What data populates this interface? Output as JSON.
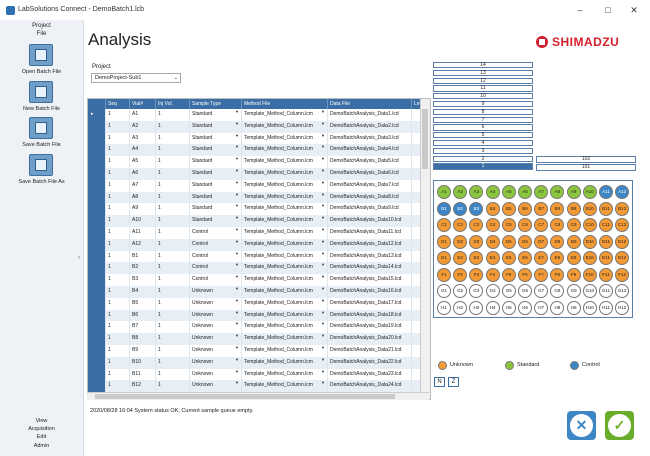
{
  "window": {
    "title": "LabSolutions Connect - DemoBatch1.lcb",
    "minimize": "–",
    "maximize": "□",
    "close": "✕"
  },
  "sidebar": {
    "top": [
      "Project",
      "File"
    ],
    "buttons": [
      {
        "label": "Open Batch File",
        "icon": "open-batch-icon"
      },
      {
        "label": "New Batch File",
        "icon": "new-batch-icon"
      },
      {
        "label": "Save Batch File",
        "icon": "save-batch-icon"
      },
      {
        "label": "Save Batch File As",
        "icon": "save-as-batch-icon"
      }
    ],
    "bottom": [
      "View",
      "Acquisition",
      "Edit",
      "Admin"
    ],
    "collapse": "‹"
  },
  "page": {
    "title": "Analysis",
    "brand": "SHIMADZU",
    "project_label": "Project",
    "project_value": "DemoProject-Sub1"
  },
  "grid": {
    "columns": [
      "",
      "Seq",
      "Vial#",
      "Inj Vol.",
      "Sample Type",
      "Method File",
      "Data File",
      "Lev"
    ],
    "rows": [
      [
        "1",
        "A1",
        "1",
        "Standard",
        "Template_Method_Column.lcm",
        "DemoBatchAnalysis_Data1.lcd"
      ],
      [
        "1",
        "A2",
        "1",
        "Standard",
        "Template_Method_Column.lcm",
        "DemoBatchAnalysis_Data2.lcd"
      ],
      [
        "1",
        "A3",
        "1",
        "Standard",
        "Template_Method_Column.lcm",
        "DemoBatchAnalysis_Data3.lcd"
      ],
      [
        "1",
        "A4",
        "1",
        "Standard",
        "Template_Method_Column.lcm",
        "DemoBatchAnalysis_Data4.lcd"
      ],
      [
        "1",
        "A5",
        "1",
        "Standard",
        "Template_Method_Column.lcm",
        "DemoBatchAnalysis_Data5.lcd"
      ],
      [
        "1",
        "A6",
        "1",
        "Standard",
        "Template_Method_Column.lcm",
        "DemoBatchAnalysis_Data6.lcd"
      ],
      [
        "1",
        "A7",
        "1",
        "Standard",
        "Template_Method_Column.lcm",
        "DemoBatchAnalysis_Data7.lcd"
      ],
      [
        "1",
        "A8",
        "1",
        "Standard",
        "Template_Method_Column.lcm",
        "DemoBatchAnalysis_Data8.lcd"
      ],
      [
        "1",
        "A9",
        "1",
        "Standard",
        "Template_Method_Column.lcm",
        "DemoBatchAnalysis_Data9.lcd"
      ],
      [
        "1",
        "A10",
        "1",
        "Standard",
        "Template_Method_Column.lcm",
        "DemoBatchAnalysis_Data10.lcd"
      ],
      [
        "1",
        "A11",
        "1",
        "Control",
        "Template_Method_Column.lcm",
        "DemoBatchAnalysis_Data11.lcd"
      ],
      [
        "1",
        "A12",
        "1",
        "Control",
        "Template_Method_Column.lcm",
        "DemoBatchAnalysis_Data12.lcd"
      ],
      [
        "1",
        "B1",
        "1",
        "Control",
        "Template_Method_Column.lcm",
        "DemoBatchAnalysis_Data13.lcd"
      ],
      [
        "1",
        "B2",
        "1",
        "Control",
        "Template_Method_Column.lcm",
        "DemoBatchAnalysis_Data14.lcd"
      ],
      [
        "1",
        "B3",
        "1",
        "Control",
        "Template_Method_Column.lcm",
        "DemoBatchAnalysis_Data15.lcd"
      ],
      [
        "1",
        "B4",
        "1",
        "Unknown",
        "Template_Method_Column.lcm",
        "DemoBatchAnalysis_Data16.lcd"
      ],
      [
        "1",
        "B5",
        "1",
        "Unknown",
        "Template_Method_Column.lcm",
        "DemoBatchAnalysis_Data17.lcd"
      ],
      [
        "1",
        "B6",
        "1",
        "Unknown",
        "Template_Method_Column.lcm",
        "DemoBatchAnalysis_Data18.lcd"
      ],
      [
        "1",
        "B7",
        "1",
        "Unknown",
        "Template_Method_Column.lcm",
        "DemoBatchAnalysis_Data19.lcd"
      ],
      [
        "1",
        "B8",
        "1",
        "Unknown",
        "Template_Method_Column.lcm",
        "DemoBatchAnalysis_Data20.lcd"
      ],
      [
        "1",
        "B9",
        "1",
        "Unknown",
        "Template_Method_Column.lcm",
        "DemoBatchAnalysis_Data21.lcd"
      ],
      [
        "1",
        "B10",
        "1",
        "Unknown",
        "Template_Method_Column.lcm",
        "DemoBatchAnalysis_Data22.lcd"
      ],
      [
        "1",
        "B11",
        "1",
        "Unknown",
        "Template_Method_Column.lcm",
        "DemoBatchAnalysis_Data23.lcd"
      ],
      [
        "1",
        "B12",
        "1",
        "Unknown",
        "Template_Method_Column.lcm",
        "DemoBatchAnalysis_Data24.lcd"
      ]
    ]
  },
  "status": "2020/08/28 16:04 System status OK;  Current sample queue empty.",
  "sequence": {
    "left": [
      "14",
      "13",
      "12",
      "11",
      "10",
      "9",
      "8",
      "7",
      "6",
      "5",
      "4",
      "3",
      "2",
      "1"
    ],
    "right": [
      "102",
      "101"
    ]
  },
  "plate": {
    "rows": [
      {
        "letter": "A",
        "types": [
          "s",
          "s",
          "s",
          "s",
          "s",
          "s",
          "s",
          "s",
          "s",
          "s",
          "c",
          "c"
        ]
      },
      {
        "letter": "B",
        "types": [
          "c",
          "c",
          "c",
          "u",
          "u",
          "u",
          "u",
          "u",
          "u",
          "u",
          "u",
          "u"
        ]
      },
      {
        "letter": "C",
        "types": [
          "u",
          "u",
          "u",
          "u",
          "u",
          "u",
          "u",
          "u",
          "u",
          "u",
          "u",
          "u"
        ]
      },
      {
        "letter": "D",
        "types": [
          "u",
          "u",
          "u",
          "u",
          "u",
          "u",
          "u",
          "u",
          "u",
          "u",
          "u",
          "u"
        ]
      },
      {
        "letter": "E",
        "types": [
          "u",
          "u",
          "u",
          "u",
          "u",
          "u",
          "u",
          "u",
          "u",
          "u",
          "u",
          "u"
        ]
      },
      {
        "letter": "F",
        "types": [
          "u",
          "u",
          "u",
          "u",
          "u",
          "u",
          "u",
          "u",
          "u",
          "u",
          "u",
          "u"
        ]
      },
      {
        "letter": "G",
        "types": [
          "e",
          "e",
          "e",
          "e",
          "e",
          "e",
          "e",
          "e",
          "e",
          "e",
          "e",
          "e"
        ]
      },
      {
        "letter": "H",
        "types": [
          "e",
          "e",
          "e",
          "e",
          "e",
          "e",
          "e",
          "e",
          "e",
          "e",
          "e",
          "e"
        ]
      }
    ],
    "colors": {
      "u": "#f39a34",
      "s": "#8cc63f",
      "c": "#3d86c6",
      "e": "#ffffff"
    }
  },
  "legend": [
    {
      "label": "Unknown",
      "color": "#f39a34"
    },
    {
      "label": "Standard",
      "color": "#8cc63f"
    },
    {
      "label": "Control",
      "color": "#3d86c6"
    }
  ],
  "toggles": [
    "N",
    "Z"
  ],
  "actions": {
    "cancel": "✕",
    "ok": "✓"
  }
}
